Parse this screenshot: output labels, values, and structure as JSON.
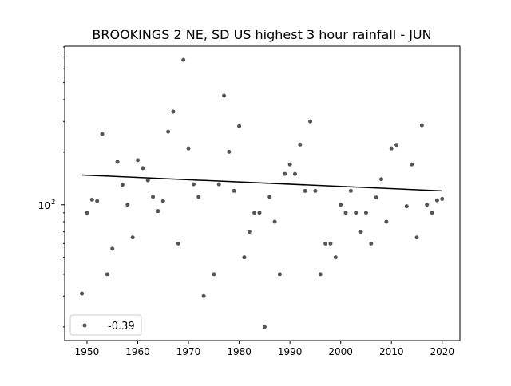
{
  "chart_data": {
    "type": "scatter",
    "title": "BROOKINGS 2 NE, SD US highest 3 hour rainfall - JUN",
    "xlabel": "",
    "ylabel": "",
    "yscale": "log",
    "xlim": [
      1945.6,
      2023.5
    ],
    "ylim": [
      16.7,
      808
    ],
    "xticks": [
      1950,
      1960,
      1970,
      1980,
      1990,
      2000,
      2010,
      2020
    ],
    "yticks": [
      {
        "value": 100,
        "label": "10",
        "exp": "2"
      }
    ],
    "legend": {
      "label": "-0.39",
      "position": "lower-left"
    },
    "point_color": "#555555",
    "line_color": "#000000",
    "trend": {
      "x": [
        1949,
        2020
      ],
      "y": [
        148,
        120
      ]
    },
    "x": [
      1949,
      1950,
      1951,
      1952,
      1953,
      1954,
      1955,
      1956,
      1957,
      1958,
      1959,
      1960,
      1961,
      1962,
      1963,
      1964,
      1965,
      1966,
      1967,
      1968,
      1969,
      1970,
      1971,
      1972,
      1973,
      1975,
      1976,
      1977,
      1978,
      1979,
      1980,
      1981,
      1982,
      1983,
      1984,
      1985,
      1986,
      1987,
      1988,
      1989,
      1990,
      1991,
      1992,
      1993,
      1994,
      1995,
      1996,
      1997,
      1998,
      1999,
      2000,
      2001,
      2002,
      2003,
      2004,
      2005,
      2006,
      2007,
      2008,
      2009,
      2010,
      2011,
      2013,
      2014,
      2015,
      2016,
      2017,
      2018,
      2019,
      2020
    ],
    "y": [
      31,
      90,
      107,
      105,
      254,
      40,
      56,
      176,
      130,
      100,
      65,
      180,
      162,
      138,
      111,
      92,
      105,
      262,
      341,
      60,
      675,
      210,
      131,
      111,
      30,
      40,
      131,
      421,
      201,
      120,
      282,
      50,
      70,
      90,
      90,
      20,
      111,
      80,
      40,
      150,
      170,
      150,
      221,
      120,
      300,
      120,
      40,
      60,
      60,
      50,
      100,
      90,
      120,
      90,
      70,
      90,
      60,
      110,
      140,
      80,
      210,
      220,
      98,
      170,
      65,
      285,
      100,
      90,
      106,
      108
    ]
  }
}
